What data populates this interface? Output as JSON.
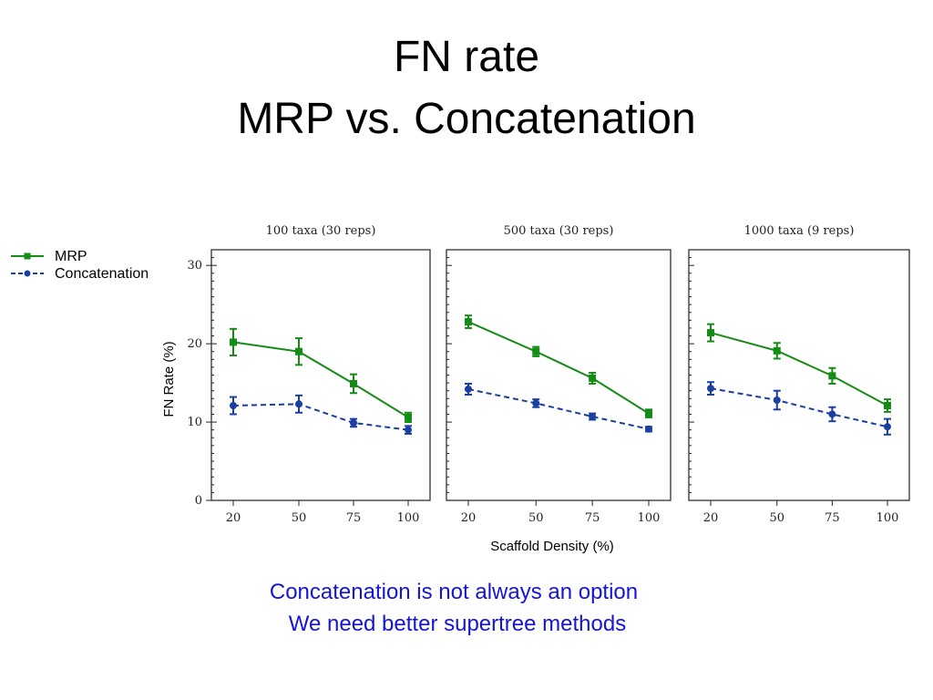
{
  "slide": {
    "title_line1": "FN rate",
    "title_line2": "MRP vs. Concatenation",
    "message_line1": "Concatenation is not always an option",
    "message_line2": "We need better supertree methods"
  },
  "chart_data": {
    "type": "line",
    "ylabel": "FN Rate (%)",
    "xlabel": "Scaffold Density (%)",
    "ylim": [
      0,
      32
    ],
    "yticks": [
      0,
      10,
      20,
      30
    ],
    "grid": false,
    "legend": {
      "placement": "top-left",
      "entries": [
        "MRP",
        "Concatenation"
      ]
    },
    "colors": {
      "MRP": "#158c15",
      "Concatenation": "#1a3fa0"
    },
    "panels": [
      {
        "title": "100 taxa (30 reps)",
        "x": [
          20,
          50,
          75,
          100
        ],
        "series": [
          {
            "name": "MRP",
            "values": [
              20.2,
              19.0,
              14.9,
              10.6
            ],
            "errors": [
              1.7,
              1.7,
              1.2,
              0.6
            ],
            "marker": "square",
            "dash": "solid"
          },
          {
            "name": "Concatenation",
            "values": [
              12.1,
              12.3,
              9.9,
              9.0
            ],
            "errors": [
              1.1,
              1.1,
              0.5,
              0.5
            ],
            "marker": "circle",
            "dash": "dashed"
          }
        ]
      },
      {
        "title": "500 taxa (30 reps)",
        "x": [
          20,
          50,
          75,
          100
        ],
        "series": [
          {
            "name": "MRP",
            "values": [
              22.8,
              19.0,
              15.6,
              11.1
            ],
            "errors": [
              0.8,
              0.6,
              0.7,
              0.5
            ],
            "marker": "square",
            "dash": "solid"
          },
          {
            "name": "Concatenation",
            "values": [
              14.2,
              12.4,
              10.7,
              9.1
            ],
            "errors": [
              0.7,
              0.5,
              0.4,
              0.3
            ],
            "marker": "circle",
            "dash": "dashed"
          }
        ]
      },
      {
        "title": "1000 taxa (9 reps)",
        "x": [
          20,
          50,
          75,
          100
        ],
        "series": [
          {
            "name": "MRP",
            "values": [
              21.4,
              19.1,
              15.9,
              12.1
            ],
            "errors": [
              1.1,
              1.0,
              1.0,
              0.8
            ],
            "marker": "square",
            "dash": "solid"
          },
          {
            "name": "Concatenation",
            "values": [
              14.3,
              12.8,
              11.0,
              9.4
            ],
            "errors": [
              0.8,
              1.2,
              0.9,
              1.0
            ],
            "marker": "circle",
            "dash": "dashed"
          }
        ]
      }
    ]
  }
}
